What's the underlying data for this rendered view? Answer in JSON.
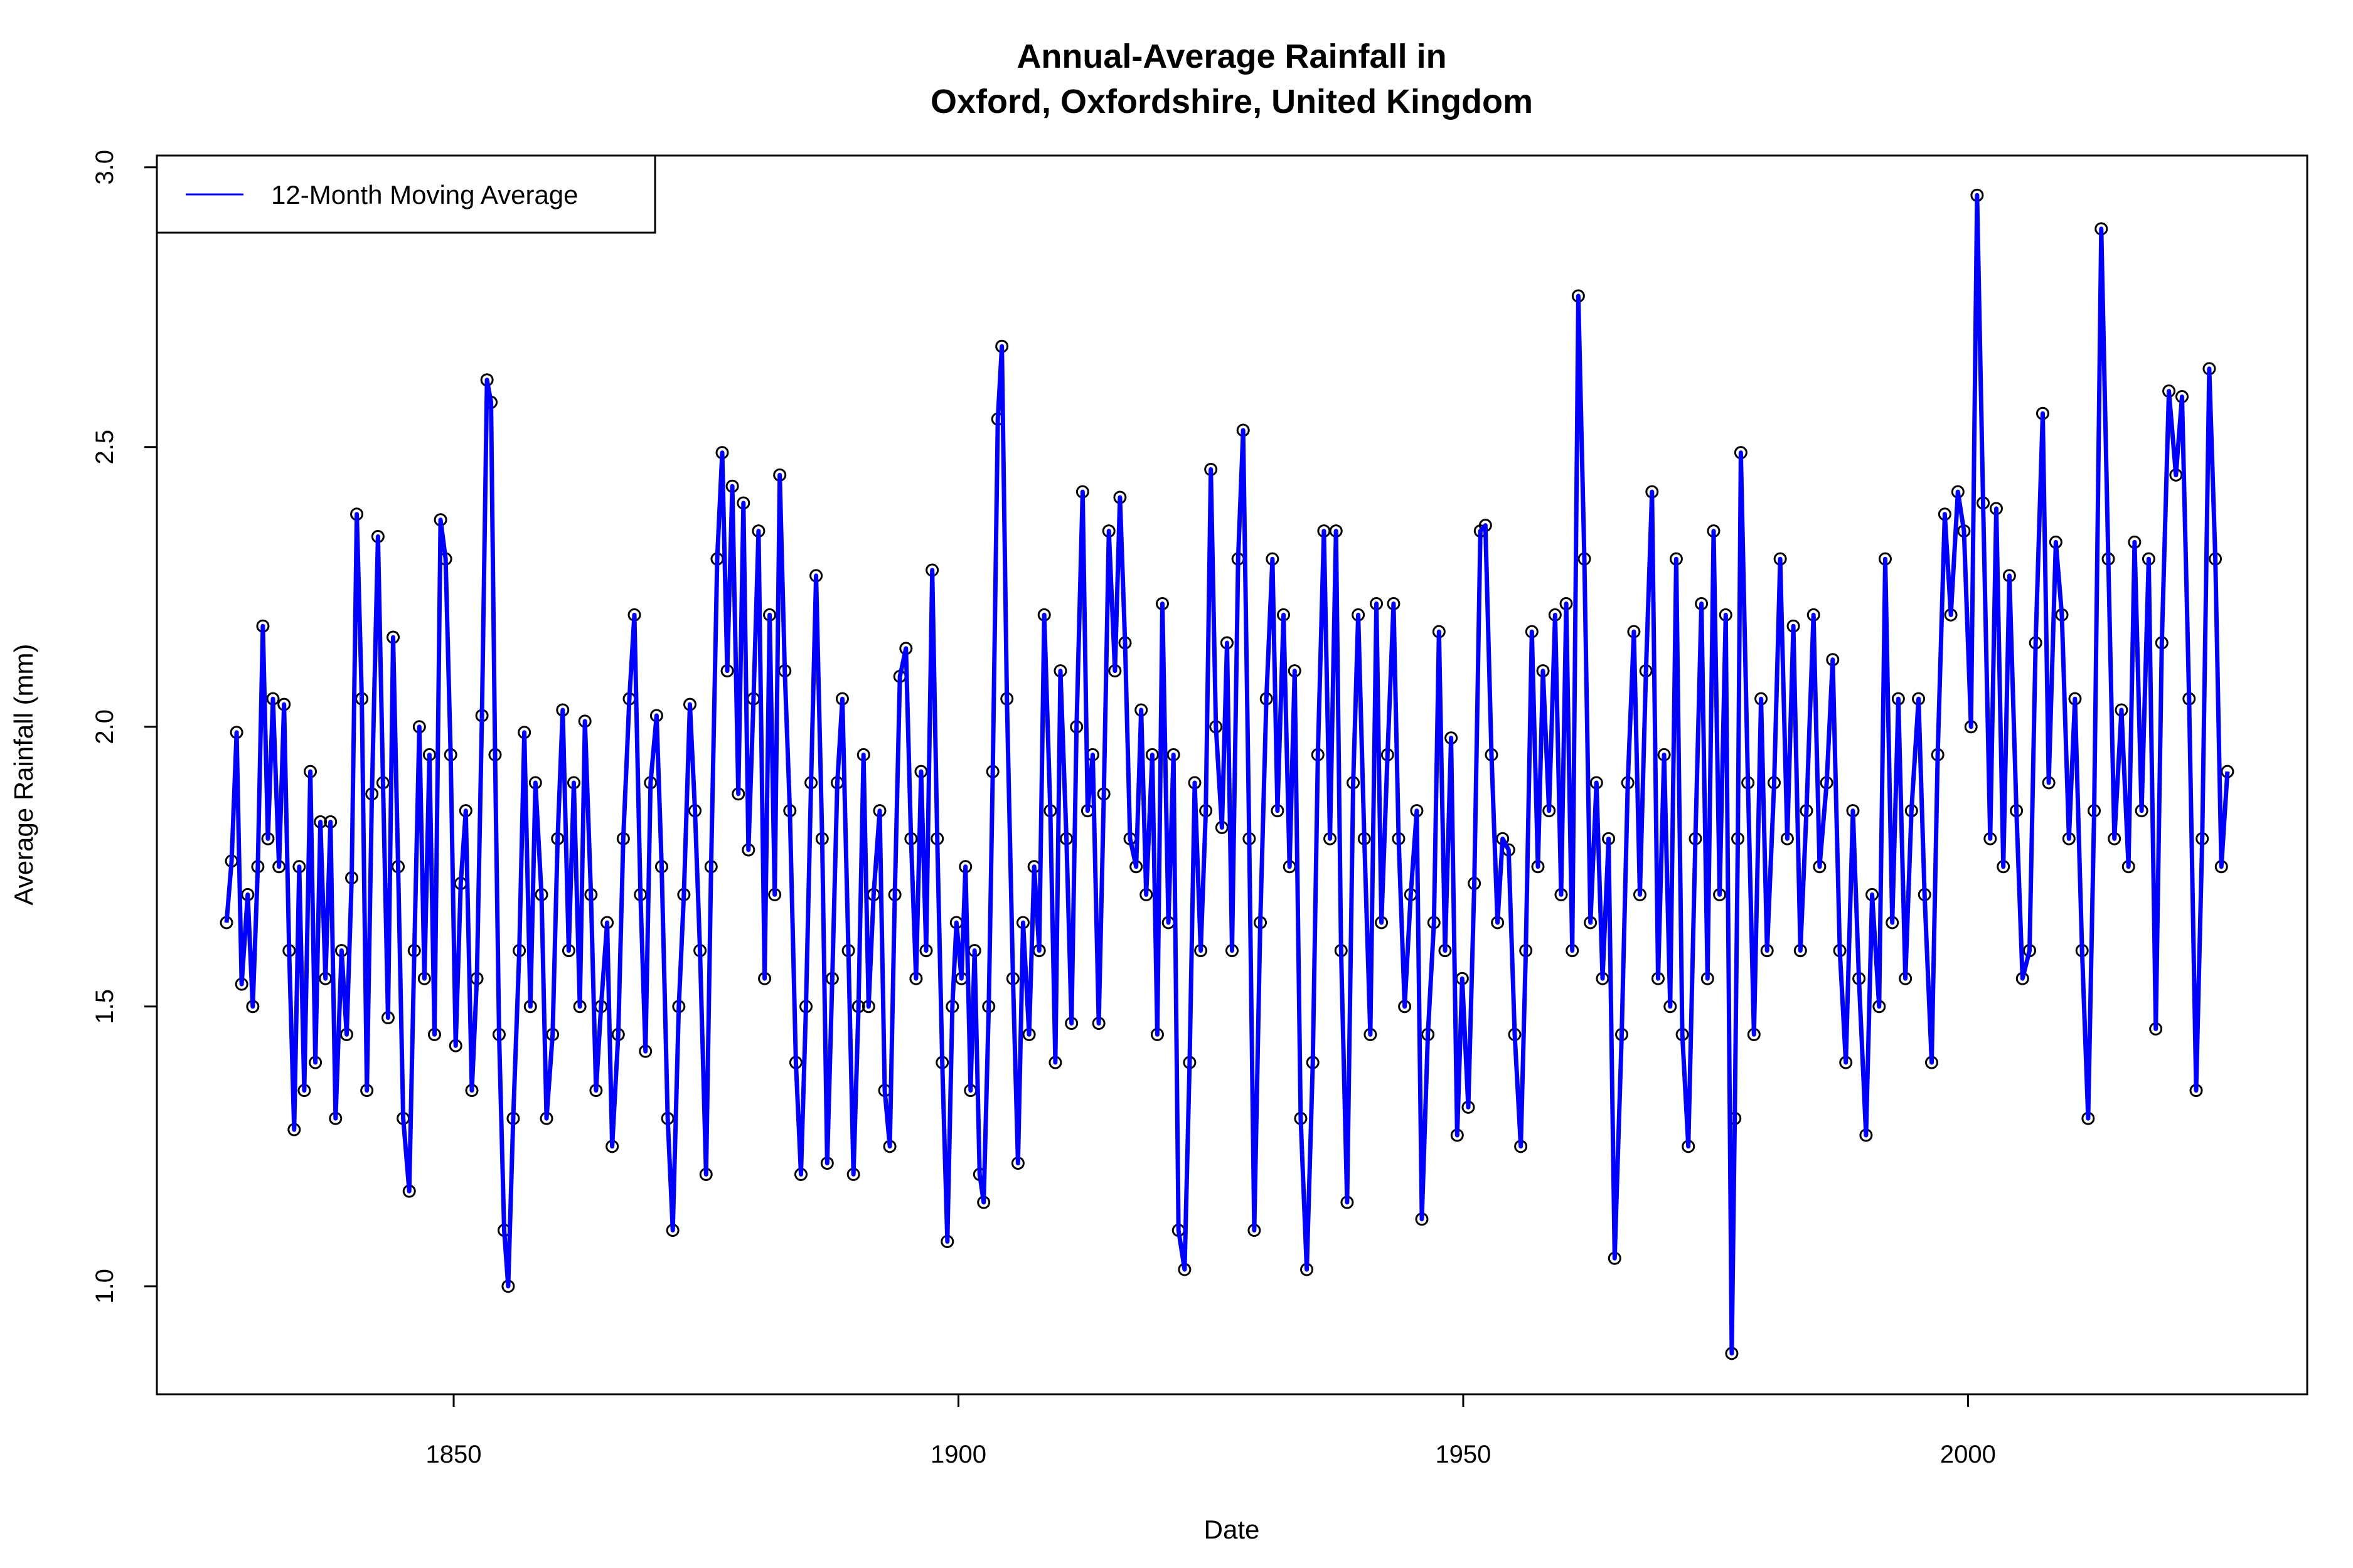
{
  "chart_data": {
    "type": "line",
    "title": "Annual-Average Rainfall in",
    "subtitle": "Oxford, Oxfordshire, United Kingdom",
    "xlabel": "Date",
    "ylabel": "Average Rainfall (mm)",
    "xlim": [
      1820.6,
      2033.6
    ],
    "ylim": [
      0.807,
      3.021
    ],
    "x_ticks": [
      1850,
      1900,
      1950,
      2000
    ],
    "x_tick_labels": [
      "1850",
      "1900",
      "1950",
      "2000"
    ],
    "y_ticks": [
      1.0,
      1.5,
      2.0,
      2.5,
      3.0
    ],
    "y_tick_labels": [
      "1.0",
      "1.5",
      "2.0",
      "2.5",
      "3.0"
    ],
    "grid": false,
    "legend": {
      "position": "top-left",
      "entries": [
        {
          "label": "12-Month Moving Average",
          "color": "#0000ff"
        }
      ]
    },
    "colors": {
      "line": "#0000ff",
      "markers": "#000000"
    },
    "markers": "open-circle",
    "series": [
      {
        "name": "12-Month Moving Average",
        "x": [
          1827.5,
          1828.0,
          1828.5,
          1829.0,
          1829.6,
          1830.1,
          1830.6,
          1831.1,
          1831.6,
          1832.1,
          1832.7,
          1833.2,
          1833.7,
          1834.2,
          1834.7,
          1835.2,
          1835.8,
          1836.3,
          1836.8,
          1837.3,
          1837.8,
          1838.3,
          1838.9,
          1839.4,
          1839.9,
          1840.4,
          1840.9,
          1841.4,
          1841.9,
          1842.5,
          1843.0,
          1843.5,
          1844.0,
          1844.5,
          1845.0,
          1845.6,
          1846.1,
          1846.6,
          1847.1,
          1847.6,
          1848.1,
          1848.7,
          1849.2,
          1849.7,
          1850.2,
          1850.7,
          1851.2,
          1851.8,
          1852.3,
          1852.8,
          1853.3,
          1853.7,
          1854.1,
          1854.5,
          1855.0,
          1855.4,
          1855.9,
          1856.5,
          1857.0,
          1857.6,
          1858.1,
          1858.7,
          1859.2,
          1859.8,
          1860.3,
          1860.8,
          1861.4,
          1861.9,
          1862.5,
          1863.0,
          1863.6,
          1864.1,
          1864.6,
          1865.2,
          1865.7,
          1866.3,
          1866.8,
          1867.4,
          1867.9,
          1868.5,
          1869.0,
          1869.5,
          1870.1,
          1870.6,
          1871.2,
          1871.7,
          1872.3,
          1872.8,
          1873.4,
          1873.9,
          1874.4,
          1875.0,
          1875.5,
          1876.1,
          1876.6,
          1877.1,
          1877.6,
          1878.2,
          1878.7,
          1879.2,
          1879.7,
          1880.2,
          1880.8,
          1881.3,
          1881.8,
          1882.3,
          1882.8,
          1883.3,
          1883.9,
          1884.4,
          1884.9,
          1885.4,
          1885.9,
          1886.5,
          1887.0,
          1887.5,
          1888.0,
          1888.5,
          1889.1,
          1889.6,
          1890.1,
          1890.6,
          1891.1,
          1891.6,
          1892.2,
          1892.7,
          1893.2,
          1893.7,
          1894.2,
          1894.8,
          1895.3,
          1895.8,
          1896.3,
          1896.8,
          1897.4,
          1897.9,
          1898.4,
          1898.9,
          1899.4,
          1899.8,
          1900.3,
          1900.7,
          1901.2,
          1901.6,
          1902.1,
          1902.5,
          1903.0,
          1903.4,
          1903.9,
          1904.3,
          1904.8,
          1905.4,
          1905.9,
          1906.4,
          1907.0,
          1907.5,
          1908.0,
          1908.5,
          1909.1,
          1909.6,
          1910.1,
          1910.7,
          1911.2,
          1911.7,
          1912.3,
          1912.8,
          1913.3,
          1913.9,
          1914.4,
          1914.9,
          1915.5,
          1916.0,
          1916.5,
          1917.0,
          1917.6,
          1918.1,
          1918.6,
          1919.2,
          1919.7,
          1920.2,
          1920.8,
          1921.3,
          1921.8,
          1922.4,
          1922.9,
          1923.4,
          1924.0,
          1924.5,
          1925.0,
          1925.5,
          1926.1,
          1926.6,
          1927.1,
          1927.7,
          1928.2,
          1928.8,
          1929.3,
          1929.9,
          1930.5,
          1931.1,
          1931.6,
          1932.2,
          1932.8,
          1933.3,
          1933.9,
          1934.5,
          1935.1,
          1935.6,
          1936.2,
          1936.8,
          1937.4,
          1937.9,
          1938.5,
          1939.1,
          1939.6,
          1940.2,
          1940.8,
          1941.4,
          1941.9,
          1942.5,
          1943.1,
          1943.6,
          1944.2,
          1944.8,
          1945.4,
          1945.9,
          1946.5,
          1947.1,
          1947.6,
          1948.2,
          1948.8,
          1949.4,
          1949.9,
          1950.5,
          1951.1,
          1951.7,
          1952.2,
          1952.8,
          1953.4,
          1953.9,
          1954.5,
          1955.1,
          1955.7,
          1956.2,
          1956.8,
          1957.4,
          1957.9,
          1958.5,
          1959.1,
          1959.7,
          1960.2,
          1960.8,
          1961.4,
          1962.0,
          1962.6,
          1963.2,
          1963.8,
          1964.4,
          1965.0,
          1965.7,
          1966.3,
          1966.9,
          1967.5,
          1968.1,
          1968.7,
          1969.3,
          1969.9,
          1970.5,
          1971.1,
          1971.7,
          1972.3,
          1973.0,
          1973.6,
          1974.2,
          1974.8,
          1975.4,
          1976.0,
          1976.6,
          1976.9,
          1977.2,
          1977.5,
          1978.2,
          1978.8,
          1979.5,
          1980.1,
          1980.8,
          1981.4,
          1982.1,
          1982.7,
          1983.4,
          1984.0,
          1984.7,
          1985.3,
          1986.0,
          1986.6,
          1987.3,
          1987.9,
          1988.6,
          1989.2,
          1989.9,
          1990.5,
          1991.2,
          1991.8,
          1992.5,
          1993.1,
          1993.8,
          1994.4,
          1995.1,
          1995.7,
          1996.4,
          1997.0,
          1997.7,
          1998.3,
          1999.0,
          1999.6,
          2000.3,
          2000.9,
          2001.5,
          2002.2,
          2002.8,
          2003.5,
          2004.1,
          2004.8,
          2005.4,
          2006.1,
          2006.7,
          2007.4,
          2008.0,
          2008.7,
          2009.3,
          2010.0,
          2010.6,
          2011.3,
          2011.9,
          2012.5,
          2013.2,
          2013.9,
          2014.5,
          2015.2,
          2015.9,
          2016.5,
          2017.2,
          2017.9,
          2018.6,
          2019.2,
          2019.9,
          2020.6,
          2021.2,
          2021.9,
          2022.6,
          2023.2,
          2023.9,
          2024.5,
          2025.1,
          2025.7
        ],
        "y": [
          1.65,
          1.76,
          1.99,
          1.54,
          1.7,
          1.5,
          1.75,
          2.18,
          1.8,
          2.05,
          1.75,
          2.04,
          1.6,
          1.28,
          1.75,
          1.35,
          1.92,
          1.4,
          1.83,
          1.55,
          1.83,
          1.3,
          1.6,
          1.45,
          1.73,
          2.38,
          2.05,
          1.35,
          1.88,
          2.34,
          1.9,
          1.48,
          2.16,
          1.75,
          1.3,
          1.17,
          1.6,
          2.0,
          1.55,
          1.95,
          1.45,
          2.37,
          2.3,
          1.95,
          1.43,
          1.72,
          1.85,
          1.35,
          1.55,
          2.02,
          2.62,
          2.58,
          1.95,
          1.45,
          1.1,
          1.0,
          1.3,
          1.6,
          1.99,
          1.5,
          1.9,
          1.7,
          1.3,
          1.45,
          1.8,
          2.03,
          1.6,
          1.9,
          1.5,
          2.01,
          1.7,
          1.35,
          1.5,
          1.65,
          1.25,
          1.45,
          1.8,
          2.05,
          2.2,
          1.7,
          1.42,
          1.9,
          2.02,
          1.75,
          1.3,
          1.1,
          1.5,
          1.7,
          2.04,
          1.85,
          1.6,
          1.2,
          1.75,
          2.3,
          2.49,
          2.1,
          2.43,
          1.88,
          2.4,
          1.78,
          2.05,
          2.35,
          1.55,
          2.2,
          1.7,
          2.45,
          2.1,
          1.85,
          1.4,
          1.2,
          1.5,
          1.9,
          2.27,
          1.8,
          1.22,
          1.55,
          1.9,
          2.05,
          1.6,
          1.2,
          1.5,
          1.95,
          1.5,
          1.7,
          1.85,
          1.35,
          1.25,
          1.7,
          2.09,
          2.14,
          1.8,
          1.55,
          1.92,
          1.6,
          2.28,
          1.8,
          1.4,
          1.08,
          1.5,
          1.65,
          1.55,
          1.75,
          1.35,
          1.6,
          1.2,
          1.15,
          1.5,
          1.92,
          2.55,
          2.68,
          2.05,
          1.55,
          1.22,
          1.65,
          1.45,
          1.75,
          1.6,
          2.2,
          1.85,
          1.4,
          2.1,
          1.8,
          1.47,
          2.0,
          2.42,
          1.85,
          1.95,
          1.47,
          1.88,
          2.35,
          2.1,
          2.41,
          2.15,
          1.8,
          1.75,
          2.03,
          1.7,
          1.95,
          1.45,
          2.22,
          1.65,
          1.95,
          1.1,
          1.03,
          1.4,
          1.9,
          1.6,
          1.85,
          2.46,
          2.0,
          1.82,
          2.15,
          1.6,
          2.3,
          2.53,
          1.8,
          1.1,
          1.65,
          2.05,
          2.3,
          1.85,
          2.2,
          1.75,
          2.1,
          1.3,
          1.03,
          1.4,
          1.95,
          2.35,
          1.8,
          2.35,
          1.6,
          1.15,
          1.9,
          2.2,
          1.8,
          1.45,
          2.22,
          1.65,
          1.95,
          2.22,
          1.8,
          1.5,
          1.7,
          1.85,
          1.12,
          1.45,
          1.65,
          2.17,
          1.6,
          1.98,
          1.27,
          1.55,
          1.32,
          1.72,
          2.35,
          2.36,
          1.95,
          1.65,
          1.8,
          1.78,
          1.45,
          1.25,
          1.6,
          2.17,
          1.75,
          2.1,
          1.85,
          2.2,
          1.7,
          2.22,
          1.6,
          2.77,
          2.3,
          1.65,
          1.9,
          1.55,
          1.8,
          1.05,
          1.45,
          1.9,
          2.17,
          1.7,
          2.1,
          2.42,
          1.55,
          1.95,
          1.5,
          2.3,
          1.45,
          1.25,
          1.8,
          2.22,
          1.55,
          2.35,
          1.7,
          2.2,
          0.88,
          1.3,
          1.8,
          2.49,
          1.9,
          1.45,
          2.05,
          1.6,
          1.9,
          2.3,
          1.8,
          2.18,
          1.6,
          1.85,
          2.2,
          1.75,
          1.9,
          2.12,
          1.6,
          1.4,
          1.85,
          1.55,
          1.27,
          1.7,
          1.5,
          2.3,
          1.65,
          2.05,
          1.55,
          1.85,
          2.05,
          1.7,
          1.4,
          1.95,
          2.38,
          2.2,
          2.42,
          2.35,
          2.0,
          2.95,
          2.4,
          1.8,
          2.39,
          1.75,
          2.27,
          1.85,
          1.55,
          1.6,
          2.15,
          2.56,
          1.9,
          2.33,
          2.2,
          1.8,
          2.05,
          1.6,
          1.3,
          1.85,
          2.89,
          2.3,
          1.8,
          2.03,
          1.75,
          2.33,
          1.85,
          2.3,
          1.46,
          2.15,
          2.6,
          2.45,
          2.59,
          2.05,
          1.35,
          1.8,
          2.64,
          2.3,
          1.75,
          1.92
        ]
      }
    ]
  }
}
